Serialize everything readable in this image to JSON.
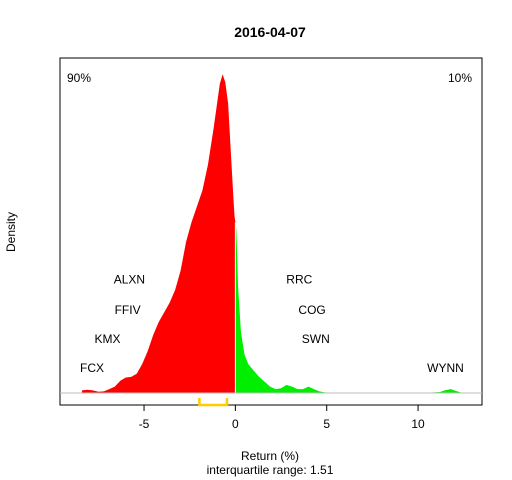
{
  "chart_data": {
    "type": "area",
    "title": "2016-04-07",
    "xlabel": "Return (%)",
    "ylabel": "Density",
    "subtitle": "interquartile range: 1.51",
    "xlim": [
      -9.6,
      13.5
    ],
    "ylim": [
      0,
      1.0
    ],
    "xticks": [
      -5,
      0,
      5,
      10
    ],
    "xtick_labels": [
      "-5",
      "0",
      "5",
      "10"
    ],
    "split_at": 0,
    "left_pct": "90%",
    "right_pct": "10%",
    "colors": {
      "negative": "#ff0000",
      "positive": "#00ee00",
      "iqr": "#ffcc00",
      "baseline": "#bebebe",
      "left_pct": "#ff0000",
      "right_pct": "#008800"
    },
    "iqr_range": [
      -1.97,
      -0.46
    ],
    "density_series": {
      "x": [
        -8.4,
        -8.1,
        -7.8,
        -7.5,
        -7.2,
        -6.9,
        -6.6,
        -6.3,
        -6.0,
        -5.7,
        -5.4,
        -5.1,
        -4.8,
        -4.5,
        -4.2,
        -3.9,
        -3.6,
        -3.3,
        -3.0,
        -2.7,
        -2.4,
        -2.1,
        -1.8,
        -1.5,
        -1.2,
        -1.0,
        -0.85,
        -0.7,
        -0.55,
        -0.4,
        -0.3,
        -0.2,
        -0.1,
        -0.05,
        0.0,
        0.05,
        0.15,
        0.3,
        0.5,
        0.7,
        1.0,
        1.3,
        1.6,
        1.9,
        2.2,
        2.5,
        2.8,
        3.1,
        3.4,
        3.7,
        4.0,
        4.3,
        4.6,
        4.9,
        5.3,
        5.8,
        6.5,
        7.5,
        8.5,
        9.5,
        10.5,
        11.2,
        11.5,
        11.8,
        12.1,
        12.4,
        12.8
      ],
      "y": [
        0.008,
        0.01,
        0.008,
        0.004,
        0.005,
        0.012,
        0.02,
        0.038,
        0.048,
        0.05,
        0.06,
        0.09,
        0.13,
        0.18,
        0.22,
        0.25,
        0.28,
        0.32,
        0.38,
        0.47,
        0.53,
        0.58,
        0.63,
        0.71,
        0.82,
        0.9,
        0.96,
        0.99,
        0.965,
        0.9,
        0.8,
        0.7,
        0.6,
        0.55,
        0.53,
        0.51,
        0.33,
        0.19,
        0.12,
        0.09,
        0.07,
        0.05,
        0.035,
        0.02,
        0.012,
        0.015,
        0.025,
        0.02,
        0.012,
        0.012,
        0.02,
        0.012,
        0.005,
        0.002,
        0.001,
        0.001,
        0.0005,
        0.0003,
        0.0003,
        0.0004,
        0.001,
        0.003,
        0.009,
        0.012,
        0.006,
        0.001,
        0.0
      ]
    },
    "annotations": [
      {
        "text": "ALXN",
        "x": -5.8,
        "y": 0.34
      },
      {
        "text": "FFIV",
        "x": -5.9,
        "y": 0.245
      },
      {
        "text": "KMX",
        "x": -7.0,
        "y": 0.155
      },
      {
        "text": "FCX",
        "x": -7.85,
        "y": 0.065
      },
      {
        "text": "RRC",
        "x": 3.5,
        "y": 0.34
      },
      {
        "text": "COG",
        "x": 4.2,
        "y": 0.245
      },
      {
        "text": "SWN",
        "x": 4.4,
        "y": 0.155
      },
      {
        "text": "WYNN",
        "x": 11.5,
        "y": 0.065
      }
    ]
  }
}
